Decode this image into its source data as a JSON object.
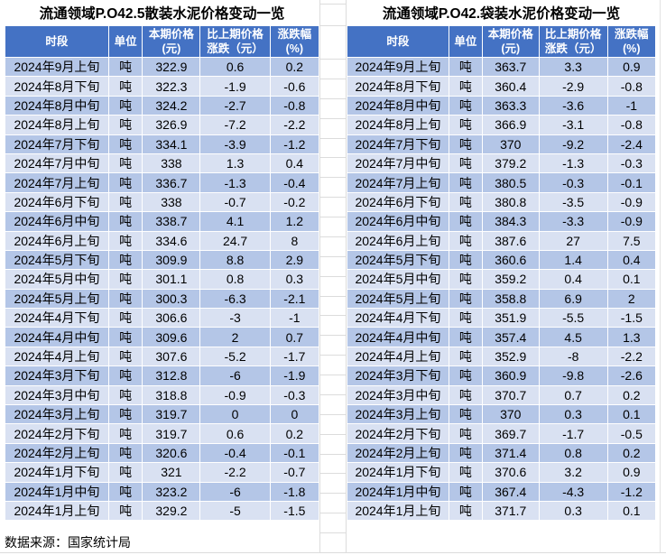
{
  "source_note": "数据来源：国家统计局",
  "theme": {
    "header_bg": "#4472C4",
    "header_text": "#FFFFFF",
    "row_band_dark": "#B4C6E7",
    "row_band_light": "#D9E1F2",
    "gridline": "#DCDCDC",
    "text": "#000000"
  },
  "chart_data": [
    {
      "type": "table",
      "title": "流通领域P.O42.5散装水泥价格变动一览",
      "columns": [
        [
          "时段"
        ],
        [
          "单位"
        ],
        [
          "本期价格",
          "(元)"
        ],
        [
          "比上期价格",
          "涨跌（元）"
        ],
        [
          "涨跌幅",
          "(%)"
        ]
      ],
      "rows": [
        [
          "2024年9月上旬",
          "吨",
          "322.9",
          "0.6",
          "0.2"
        ],
        [
          "2024年8月下旬",
          "吨",
          "322.3",
          "-1.9",
          "-0.6"
        ],
        [
          "2024年8月中旬",
          "吨",
          "324.2",
          "-2.7",
          "-0.8"
        ],
        [
          "2024年8月上旬",
          "吨",
          "326.9",
          "-7.2",
          "-2.2"
        ],
        [
          "2024年7月下旬",
          "吨",
          "334.1",
          "-3.9",
          "-1.2"
        ],
        [
          "2024年7月中旬",
          "吨",
          "338",
          "1.3",
          "0.4"
        ],
        [
          "2024年7月上旬",
          "吨",
          "336.7",
          "-1.3",
          "-0.4"
        ],
        [
          "2024年6月下旬",
          "吨",
          "338",
          "-0.7",
          "-0.2"
        ],
        [
          "2024年6月中旬",
          "吨",
          "338.7",
          "4.1",
          "1.2"
        ],
        [
          "2024年6月上旬",
          "吨",
          "334.6",
          "24.7",
          "8"
        ],
        [
          "2024年5月下旬",
          "吨",
          "309.9",
          "8.8",
          "2.9"
        ],
        [
          "2024年5月中旬",
          "吨",
          "301.1",
          "0.8",
          "0.3"
        ],
        [
          "2024年5月上旬",
          "吨",
          "300.3",
          "-6.3",
          "-2.1"
        ],
        [
          "2024年4月下旬",
          "吨",
          "306.6",
          "-3",
          "-1"
        ],
        [
          "2024年4月中旬",
          "吨",
          "309.6",
          "2",
          "0.7"
        ],
        [
          "2024年4月上旬",
          "吨",
          "307.6",
          "-5.2",
          "-1.7"
        ],
        [
          "2024年3月下旬",
          "吨",
          "312.8",
          "-6",
          "-1.9"
        ],
        [
          "2024年3月中旬",
          "吨",
          "318.8",
          "-0.9",
          "-0.3"
        ],
        [
          "2024年3月上旬",
          "吨",
          "319.7",
          "0",
          "0"
        ],
        [
          "2024年2月下旬",
          "吨",
          "319.7",
          "0.6",
          "0.2"
        ],
        [
          "2024年2月上旬",
          "吨",
          "320.6",
          "-0.4",
          "-0.1"
        ],
        [
          "2024年1月下旬",
          "吨",
          "321",
          "-2.2",
          "-0.7"
        ],
        [
          "2024年1月中旬",
          "吨",
          "323.2",
          "-6",
          "-1.8"
        ],
        [
          "2024年1月上旬",
          "吨",
          "329.2",
          "-5",
          "-1.5"
        ]
      ]
    },
    {
      "type": "table",
      "title": "流通领域P.O42.袋装水泥价格变动一览",
      "columns": [
        [
          "时段"
        ],
        [
          "单位"
        ],
        [
          "本期价格",
          "(元)"
        ],
        [
          "比上期价格",
          "涨跌（元）"
        ],
        [
          "涨跌幅",
          "(%)"
        ]
      ],
      "rows": [
        [
          "2024年9月上旬",
          "吨",
          "363.7",
          "3.3",
          "0.9"
        ],
        [
          "2024年8月下旬",
          "吨",
          "360.4",
          "-2.9",
          "-0.8"
        ],
        [
          "2024年8月中旬",
          "吨",
          "363.3",
          "-3.6",
          "-1"
        ],
        [
          "2024年8月上旬",
          "吨",
          "366.9",
          "-3.1",
          "-0.8"
        ],
        [
          "2024年7月下旬",
          "吨",
          "370",
          "-9.2",
          "-2.4"
        ],
        [
          "2024年7月中旬",
          "吨",
          "379.2",
          "-1.3",
          "-0.3"
        ],
        [
          "2024年7月上旬",
          "吨",
          "380.5",
          "-0.3",
          "-0.1"
        ],
        [
          "2024年6月下旬",
          "吨",
          "380.8",
          "-3.5",
          "-0.9"
        ],
        [
          "2024年6月中旬",
          "吨",
          "384.3",
          "-3.3",
          "-0.9"
        ],
        [
          "2024年6月上旬",
          "吨",
          "387.6",
          "27",
          "7.5"
        ],
        [
          "2024年5月下旬",
          "吨",
          "360.6",
          "1.4",
          "0.4"
        ],
        [
          "2024年5月中旬",
          "吨",
          "359.2",
          "0.4",
          "0.1"
        ],
        [
          "2024年5月上旬",
          "吨",
          "358.8",
          "6.9",
          "2"
        ],
        [
          "2024年4月下旬",
          "吨",
          "351.9",
          "-5.5",
          "-1.5"
        ],
        [
          "2024年4月中旬",
          "吨",
          "357.4",
          "4.5",
          "1.3"
        ],
        [
          "2024年4月上旬",
          "吨",
          "352.9",
          "-8",
          "-2.2"
        ],
        [
          "2024年3月下旬",
          "吨",
          "360.9",
          "-9.8",
          "-2.6"
        ],
        [
          "2024年3月中旬",
          "吨",
          "370.7",
          "0.7",
          "0.2"
        ],
        [
          "2024年3月上旬",
          "吨",
          "370",
          "0.3",
          "0.1"
        ],
        [
          "2024年2月下旬",
          "吨",
          "369.7",
          "-1.7",
          "-0.5"
        ],
        [
          "2024年2月上旬",
          "吨",
          "371.4",
          "0.8",
          "0.2"
        ],
        [
          "2024年1月下旬",
          "吨",
          "370.6",
          "3.2",
          "0.9"
        ],
        [
          "2024年1月中旬",
          "吨",
          "367.4",
          "-4.3",
          "-1.2"
        ],
        [
          "2024年1月上旬",
          "吨",
          "371.7",
          "0.3",
          "0.1"
        ]
      ]
    }
  ]
}
